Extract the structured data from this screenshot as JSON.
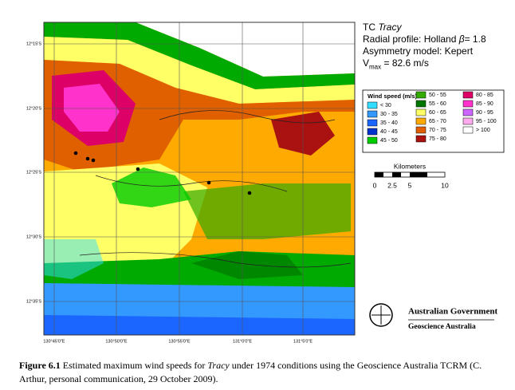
{
  "map": {
    "title": {
      "prefix": "TC ",
      "name": "Tracy"
    },
    "radial_profile": {
      "label": "Radial profile: Holland ",
      "symbol": "β",
      "value": "= 1.8"
    },
    "asymmetry": "Asymmetry model: Kepert",
    "vmax": {
      "symbol": "V",
      "sub": "max",
      "value": " = 82.6 m/s"
    },
    "legend": {
      "title": "Wind speed (m/s)",
      "entries": [
        {
          "label": "< 30",
          "color": "#33ddff"
        },
        {
          "label": "30 - 35",
          "color": "#3399ff"
        },
        {
          "label": "35 - 40",
          "color": "#1a66ff"
        },
        {
          "label": "40 - 45",
          "color": "#0033cc"
        },
        {
          "label": "45 - 50",
          "color": "#00cc00"
        },
        {
          "label": "50 - 55",
          "color": "#33aa00"
        },
        {
          "label": "55 - 60",
          "color": "#007700"
        },
        {
          "label": "60 - 65",
          "color": "#ffff66"
        },
        {
          "label": "65 - 70",
          "color": "#ffaa00"
        },
        {
          "label": "70 - 75",
          "color": "#e06000"
        },
        {
          "label": "75 - 80",
          "color": "#aa1111"
        },
        {
          "label": "80 - 85",
          "color": "#dd0066"
        },
        {
          "label": "85 - 90",
          "color": "#ff33cc"
        },
        {
          "label": "90 - 95",
          "color": "#cc66ff"
        },
        {
          "label": "95 - 100",
          "color": "#ffaaee"
        },
        {
          "label": "> 100",
          "color": "#ffffff"
        }
      ]
    },
    "scale_bar": {
      "title": "Kilometers",
      "labels": [
        0,
        2.5,
        5,
        10
      ]
    },
    "lat_labels": [
      "12°15'S",
      "12°20'S",
      "12°25'S",
      "12°30'S",
      "12°35'S"
    ],
    "lon_labels": [
      "130°45'0\"E",
      "130°50'0\"E",
      "130°55'0\"E",
      "131°0'0\"E",
      "131°5'0\"E"
    ],
    "logo": {
      "line1": "Australian Government",
      "line2": "Geoscience Australia"
    }
  },
  "caption": {
    "figure": "Figure 6.1",
    "text1": " Estimated maximum wind speeds for ",
    "name": "Tracy",
    "text2": " under 1974 conditions using the Geoscience Australia TCRM (C. Arthur, personal communication, 29 October 2009)."
  }
}
